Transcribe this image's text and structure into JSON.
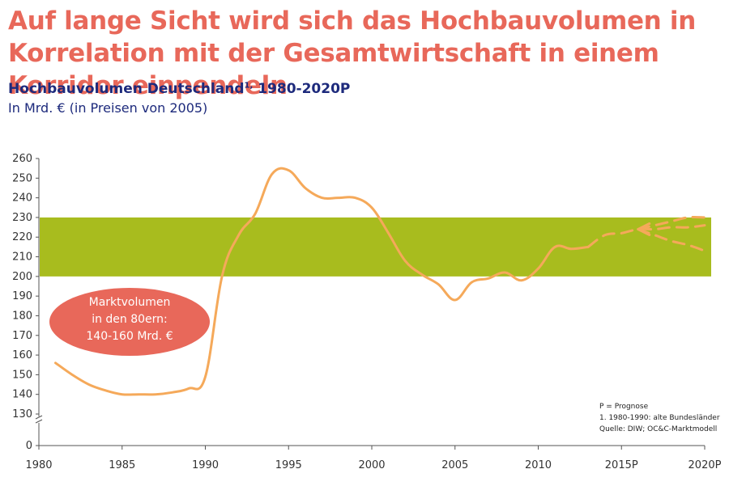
{
  "headline": "Auf lange Sicht wird sich das Hochbauvolumen in Korrelation mit der Gesamtwirtschaft in einem Korridor einpendeln",
  "subtitle": "Hochbauvolumen Deutschland",
  "subtitle_sup": "1,",
  "subtitle_range": " 1980-2020P",
  "unit": "In Mrd. € (in Preisen von 2005)",
  "annotation_lines": [
    "Marktvolumen",
    "in den 80ern:",
    "140-160 Mrd. €"
  ],
  "notes": [
    "P = Prognose",
    "1.      1980-1990: alte Bundesländer",
    "Quelle: DIW; OC&C-Marktmodell"
  ],
  "colors": {
    "line": "#f5a95a",
    "band": "#a8bc1e",
    "oval": "#e8685a",
    "headline": "#e8685a",
    "subtitle": "#1d2a7c"
  },
  "chart_data": {
    "type": "line",
    "title": "Hochbauvolumen Deutschland 1980-2020P",
    "xlabel": "",
    "ylabel": "",
    "x_ticks": [
      "1980",
      "1985",
      "1990",
      "1995",
      "2000",
      "2005",
      "2010",
      "2015P",
      "2020P"
    ],
    "y_ticks": [
      0,
      130,
      140,
      150,
      160,
      170,
      180,
      190,
      200,
      210,
      220,
      230,
      240,
      250,
      260
    ],
    "ylim": [
      130,
      260
    ],
    "axis_break": true,
    "band": {
      "from": 200,
      "to": 230
    },
    "series": [
      {
        "style": "solid",
        "x": [
          1981,
          1982,
          1983,
          1984,
          1985,
          1986,
          1987,
          1988,
          1989,
          1990,
          1991,
          1992,
          1993,
          1994,
          1995,
          1996,
          1997,
          1998,
          1999,
          2000,
          2001,
          2002,
          2003,
          2004,
          2005,
          2006,
          2007,
          2008,
          2009,
          2010,
          2011,
          2012,
          2013
        ],
        "values": [
          156,
          150,
          145,
          142,
          140,
          140,
          140,
          141,
          143,
          149,
          200,
          221,
          232,
          252,
          254,
          245,
          240,
          240,
          240,
          235,
          222,
          208,
          201,
          196,
          188,
          197,
          199,
          202,
          198,
          204,
          215,
          214,
          215
        ]
      },
      {
        "style": "dashed",
        "x": [
          2013,
          2014,
          2015,
          2016,
          2017,
          2018,
          2019,
          2020
        ],
        "values": [
          215,
          221,
          222,
          224,
          224,
          225,
          225,
          226
        ]
      },
      {
        "style": "dashed",
        "x": [
          2016,
          2017,
          2018,
          2019,
          2020
        ],
        "values": [
          224,
          226,
          228,
          230,
          230
        ]
      },
      {
        "style": "dashed",
        "x": [
          2016,
          2017,
          2018,
          2019,
          2020
        ],
        "values": [
          224,
          221,
          218,
          216,
          213
        ]
      }
    ]
  }
}
